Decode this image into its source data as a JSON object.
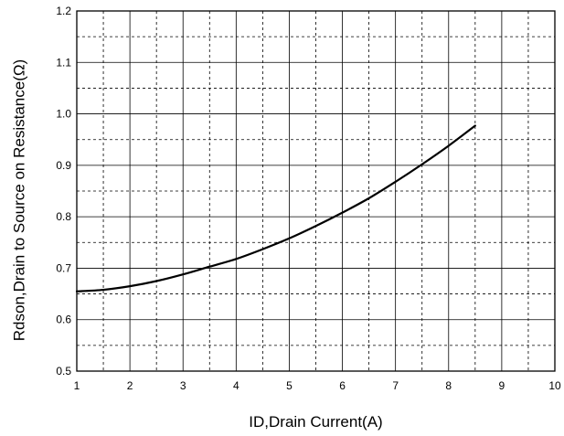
{
  "chart_data": {
    "type": "line",
    "xlabel": "ID,Drain Current(A)",
    "ylabel": "Rdson,Drain to Source on Resistance(Ω)",
    "xlim": [
      1,
      10
    ],
    "ylim": [
      0.5,
      1.2
    ],
    "x_ticks": [
      1,
      2,
      3,
      4,
      5,
      6,
      7,
      8,
      9,
      10
    ],
    "y_ticks": [
      0.5,
      0.6,
      0.7,
      0.8,
      0.9,
      1.0,
      1.1,
      1.2
    ],
    "x_tick_labels": [
      "1",
      "2",
      "3",
      "4",
      "5",
      "6",
      "7",
      "8",
      "9",
      "10"
    ],
    "y_tick_labels": [
      "0.5",
      "0.6",
      "0.7",
      "0.8",
      "0.9",
      "1.0",
      "1.1",
      "1.2"
    ],
    "grid": true,
    "minor_grid": "dashed",
    "series": [
      {
        "color": "#000000",
        "x": [
          1.0,
          1.5,
          2.0,
          2.5,
          3.0,
          3.5,
          4.0,
          4.5,
          5.0,
          5.5,
          6.0,
          6.5,
          7.0,
          7.5,
          8.0,
          8.5
        ],
        "y": [
          0.655,
          0.658,
          0.665,
          0.675,
          0.688,
          0.703,
          0.718,
          0.737,
          0.758,
          0.782,
          0.808,
          0.836,
          0.868,
          0.902,
          0.938,
          0.977
        ]
      }
    ]
  }
}
